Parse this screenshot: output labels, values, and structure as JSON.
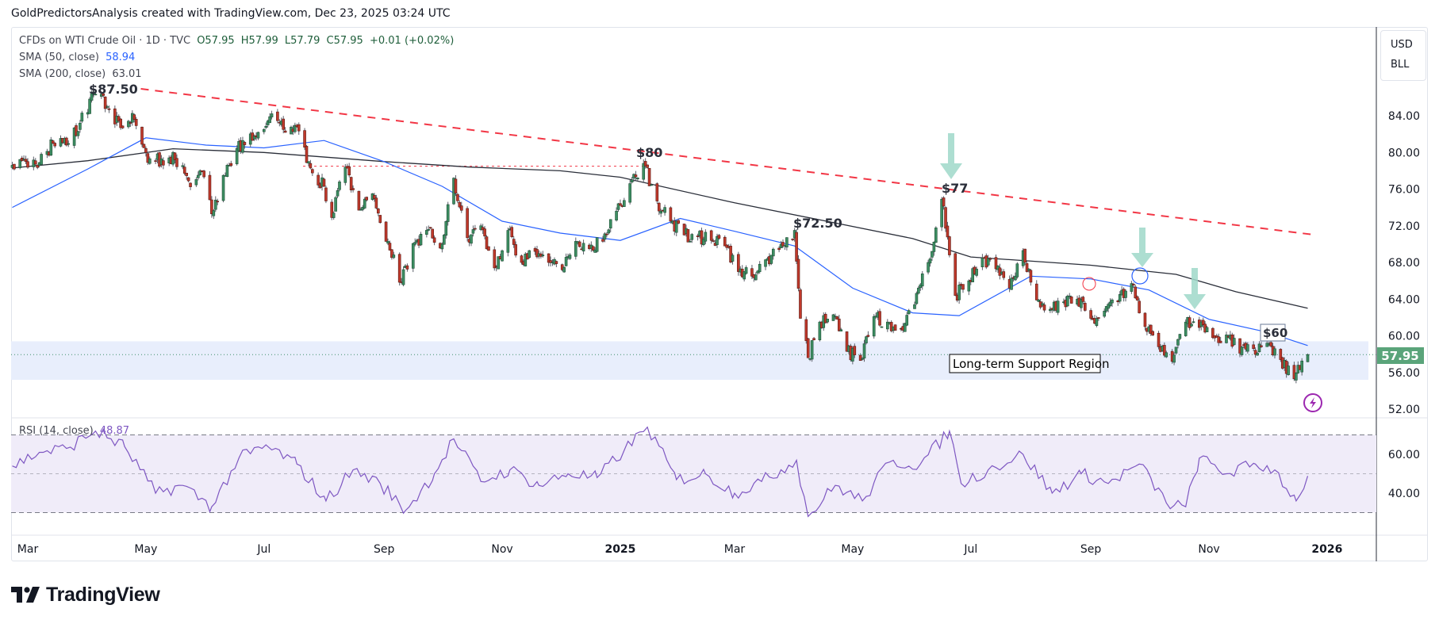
{
  "credit": "GoldPredictorsAnalysis created with TradingView.com, Dec 23, 2025 03:24 UTC",
  "legend": {
    "symbol": "CFDs on WTI Crude Oil · 1D · TVC",
    "open": "O57.95",
    "high": "H57.99",
    "low": "L57.79",
    "close": "C57.95",
    "change": "+0.01 (+0.02%)",
    "sma50_label": "SMA (50, close)",
    "sma50_value": "58.94",
    "sma200_label": "SMA (200, close)",
    "sma200_value": "63.01",
    "rsi_label": "RSI (14, close)",
    "rsi_value": "48.87"
  },
  "units": {
    "currency": "USD",
    "unit": "BLL"
  },
  "logo_text": "TradingView",
  "colors": {
    "up": "#3d8f63",
    "down": "#c0392b",
    "sma50": "#2962ff",
    "sma200": "#2a2e39",
    "rsi": "#7e57c2",
    "trend": "#f23645",
    "support": "#e8eefc",
    "arrow": "#9fd8c9",
    "last_price": "#5aa47a"
  },
  "chart_data": [
    {
      "type": "candlestick",
      "title": "",
      "price_axis": {
        "ticks": [
          "84.00",
          "80.00",
          "76.00",
          "72.00",
          "68.00",
          "64.00",
          "60.00",
          "56.00",
          "52.00"
        ],
        "range": [
          50.5,
          89
        ]
      },
      "time_axis": {
        "ticks": [
          {
            "label": "Mar",
            "date": "2024-03-01"
          },
          {
            "label": "May",
            "date": "2024-05-01"
          },
          {
            "label": "Jul",
            "date": "2024-07-01"
          },
          {
            "label": "Sep",
            "date": "2024-09-01"
          },
          {
            "label": "Nov",
            "date": "2024-11-01"
          },
          {
            "label": "2025",
            "date": "2025-01-01"
          },
          {
            "label": "Mar",
            "date": "2025-03-01"
          },
          {
            "label": "May",
            "date": "2025-05-01"
          },
          {
            "label": "Jul",
            "date": "2025-07-01"
          },
          {
            "label": "Sep",
            "date": "2025-09-01"
          },
          {
            "label": "Nov",
            "date": "2025-11-01"
          },
          {
            "label": "2026",
            "date": "2026-01-01"
          }
        ]
      },
      "last_price": "57.95",
      "close_series": {
        "dates": [
          "2024-02-22",
          "2024-02-29",
          "2024-03-07",
          "2024-03-14",
          "2024-03-21",
          "2024-03-28",
          "2024-04-04",
          "2024-04-11",
          "2024-04-18",
          "2024-04-25",
          "2024-05-02",
          "2024-05-09",
          "2024-05-16",
          "2024-05-23",
          "2024-05-30",
          "2024-06-04",
          "2024-06-13",
          "2024-06-20",
          "2024-06-27",
          "2024-07-04",
          "2024-07-11",
          "2024-07-18",
          "2024-07-25",
          "2024-08-01",
          "2024-08-05",
          "2024-08-12",
          "2024-08-19",
          "2024-08-26",
          "2024-09-03",
          "2024-09-10",
          "2024-09-17",
          "2024-09-24",
          "2024-10-01",
          "2024-10-07",
          "2024-10-14",
          "2024-10-21",
          "2024-10-28",
          "2024-11-04",
          "2024-11-11",
          "2024-11-18",
          "2024-11-25",
          "2024-12-02",
          "2024-12-09",
          "2024-12-16",
          "2024-12-23",
          "2024-12-30",
          "2025-01-06",
          "2025-01-13",
          "2025-01-20",
          "2025-01-27",
          "2025-02-03",
          "2025-02-10",
          "2025-02-17",
          "2025-02-24",
          "2025-03-03",
          "2025-03-10",
          "2025-03-17",
          "2025-03-24",
          "2025-04-01",
          "2025-04-04",
          "2025-04-08",
          "2025-04-14",
          "2025-04-21",
          "2025-04-28",
          "2025-05-05",
          "2025-05-12",
          "2025-05-19",
          "2025-05-26",
          "2025-06-02",
          "2025-06-09",
          "2025-06-16",
          "2025-06-23",
          "2025-06-30",
          "2025-07-07",
          "2025-07-14",
          "2025-07-21",
          "2025-07-28",
          "2025-08-04",
          "2025-08-11",
          "2025-08-18",
          "2025-08-25",
          "2025-09-01",
          "2025-09-08",
          "2025-09-15",
          "2025-09-22",
          "2025-09-29",
          "2025-10-06",
          "2025-10-13",
          "2025-10-20",
          "2025-10-27",
          "2025-11-03",
          "2025-11-10",
          "2025-11-17",
          "2025-11-24",
          "2025-12-01",
          "2025-12-08",
          "2025-12-15",
          "2025-12-22"
        ],
        "close": [
          78.6,
          79.0,
          78.9,
          81.0,
          80.8,
          83.2,
          86.6,
          85.0,
          82.7,
          83.6,
          78.9,
          79.3,
          79.2,
          76.9,
          77.9,
          73.3,
          78.6,
          81.3,
          81.7,
          83.9,
          82.5,
          82.8,
          78.3,
          76.3,
          72.9,
          78.4,
          73.7,
          75.5,
          70.3,
          65.8,
          70.2,
          71.6,
          70.0,
          77.2,
          70.7,
          72.0,
          67.4,
          71.5,
          68.0,
          69.2,
          68.0,
          67.2,
          70.3,
          69.5,
          70.3,
          73.6,
          76.6,
          78.8,
          74.7,
          72.5,
          71.0,
          70.8,
          70.4,
          69.8,
          67.0,
          66.5,
          68.3,
          69.4,
          71.5,
          61.9,
          57.6,
          61.5,
          62.3,
          58.3,
          57.3,
          62.1,
          61.5,
          60.8,
          63.4,
          68.0,
          74.9,
          64.4,
          66.0,
          68.5,
          67.3,
          65.2,
          69.3,
          63.9,
          62.9,
          63.7,
          64.0,
          61.9,
          62.7,
          63.7,
          65.7,
          61.0,
          58.8,
          57.2,
          61.5,
          60.9,
          59.8,
          60.1,
          58.1,
          58.6,
          59.2,
          57.4,
          55.3,
          57.95
        ]
      },
      "sma50": {
        "dates": [
          "2024-02-22",
          "2024-04-01",
          "2024-05-01",
          "2024-06-01",
          "2024-07-01",
          "2024-08-01",
          "2024-09-01",
          "2024-10-01",
          "2024-11-01",
          "2024-12-01",
          "2025-01-01",
          "2025-02-01",
          "2025-03-01",
          "2025-04-01",
          "2025-05-01",
          "2025-06-01",
          "2025-06-25",
          "2025-08-01",
          "2025-09-01",
          "2025-10-01",
          "2025-11-01",
          "2025-12-01",
          "2025-12-22"
        ],
        "values": [
          74.0,
          78.2,
          81.6,
          80.8,
          80.5,
          81.3,
          79.0,
          76.3,
          72.5,
          71.2,
          70.4,
          72.8,
          71.4,
          69.8,
          65.2,
          62.5,
          62.2,
          66.5,
          66.2,
          65.0,
          61.8,
          60.4,
          58.94
        ]
      },
      "sma200": {
        "dates": [
          "2024-02-22",
          "2024-04-01",
          "2024-05-15",
          "2024-07-01",
          "2024-09-01",
          "2024-10-15",
          "2024-12-01",
          "2025-01-01",
          "2025-03-01",
          "2025-04-15",
          "2025-06-01",
          "2025-07-01",
          "2025-09-01",
          "2025-10-15",
          "2025-11-15",
          "2025-12-22"
        ],
        "values": [
          78.3,
          79.1,
          80.4,
          80.0,
          79.0,
          78.4,
          78.0,
          77.3,
          74.5,
          72.6,
          70.6,
          68.6,
          67.7,
          66.7,
          64.8,
          63.01
        ]
      },
      "annotations": {
        "peak_1": "$87.50",
        "peak_2": "$80",
        "peak_3": "$72.50",
        "peak_4": "$77",
        "resistance": "$60",
        "support_label": "Long-term Support Region",
        "support_range": [
          55.2,
          59.4
        ],
        "trendline_from": [
          "2024-04-12",
          87.5
        ],
        "trendline_to": [
          "2025-12-26",
          71.0
        ],
        "prior_high_line": 78.5
      }
    },
    {
      "type": "line",
      "title": "RSI (14, close)",
      "y_ticks": [
        "60.00",
        "40.00"
      ],
      "bands": [
        30,
        50,
        70
      ],
      "dates": [
        "2024-02-22",
        "2024-03-07",
        "2024-03-21",
        "2024-04-05",
        "2024-04-20",
        "2024-05-06",
        "2024-05-20",
        "2024-06-04",
        "2024-06-18",
        "2024-07-03",
        "2024-07-18",
        "2024-08-02",
        "2024-08-16",
        "2024-08-30",
        "2024-09-12",
        "2024-09-27",
        "2024-10-07",
        "2024-10-21",
        "2024-11-05",
        "2024-11-20",
        "2024-12-05",
        "2024-12-20",
        "2025-01-03",
        "2025-01-15",
        "2025-01-30",
        "2025-02-14",
        "2025-03-01",
        "2025-03-15",
        "2025-04-02",
        "2025-04-08",
        "2025-04-22",
        "2025-05-06",
        "2025-05-20",
        "2025-06-05",
        "2025-06-20",
        "2025-06-26",
        "2025-07-10",
        "2025-07-28",
        "2025-08-12",
        "2025-08-27",
        "2025-09-10",
        "2025-09-26",
        "2025-10-10",
        "2025-10-20",
        "2025-10-27",
        "2025-11-10",
        "2025-11-25",
        "2025-12-05",
        "2025-12-16",
        "2025-12-22"
      ],
      "values": [
        54,
        61,
        63,
        72,
        64,
        40,
        44,
        33,
        58,
        64,
        55,
        36,
        52,
        45,
        31,
        50,
        68,
        46,
        52,
        44,
        50,
        48,
        62,
        74,
        47,
        50,
        40,
        46,
        57,
        28,
        44,
        36,
        56,
        55,
        72,
        45,
        52,
        60,
        40,
        50,
        45,
        55,
        35,
        33,
        58,
        50,
        55,
        52,
        36,
        48.87
      ]
    }
  ]
}
